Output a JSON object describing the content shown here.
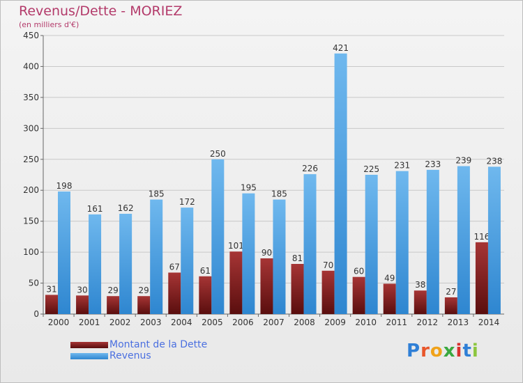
{
  "header": {
    "title": "Revenus/Dette - MORIEZ",
    "subtitle": "(en milliers d'€)"
  },
  "logo": {
    "text": "Proxiti",
    "colors": [
      "#2f7fd6",
      "#e8562a",
      "#f0a21a",
      "#3aa83f",
      "#d8322e",
      "#2f7fd6",
      "#8cc63f"
    ]
  },
  "colors": {
    "debt_top": "#a63535",
    "debt_bottom": "#5a0e0e",
    "revenue_top": "#6fb8ee",
    "revenue_bottom": "#2e86d0",
    "grid": "#c8c8c8",
    "axis_text": "#333333"
  },
  "chart_data": {
    "type": "bar",
    "categories": [
      "2000",
      "2001",
      "2002",
      "2003",
      "2004",
      "2005",
      "2006",
      "2007",
      "2008",
      "2009",
      "2010",
      "2011",
      "2012",
      "2013",
      "2014"
    ],
    "series": [
      {
        "name": "Montant de la Dette",
        "values": [
          31,
          30,
          29,
          29,
          67,
          61,
          101,
          90,
          81,
          70,
          60,
          49,
          38,
          27,
          116
        ]
      },
      {
        "name": "Revenus",
        "values": [
          198,
          161,
          162,
          185,
          172,
          250,
          195,
          185,
          226,
          421,
          225,
          231,
          233,
          239,
          238
        ]
      }
    ],
    "ylim": [
      0,
      450
    ],
    "yticks": [
      0,
      50,
      100,
      150,
      200,
      250,
      300,
      350,
      400,
      450
    ],
    "grid": true,
    "legend": "bottom-left"
  }
}
